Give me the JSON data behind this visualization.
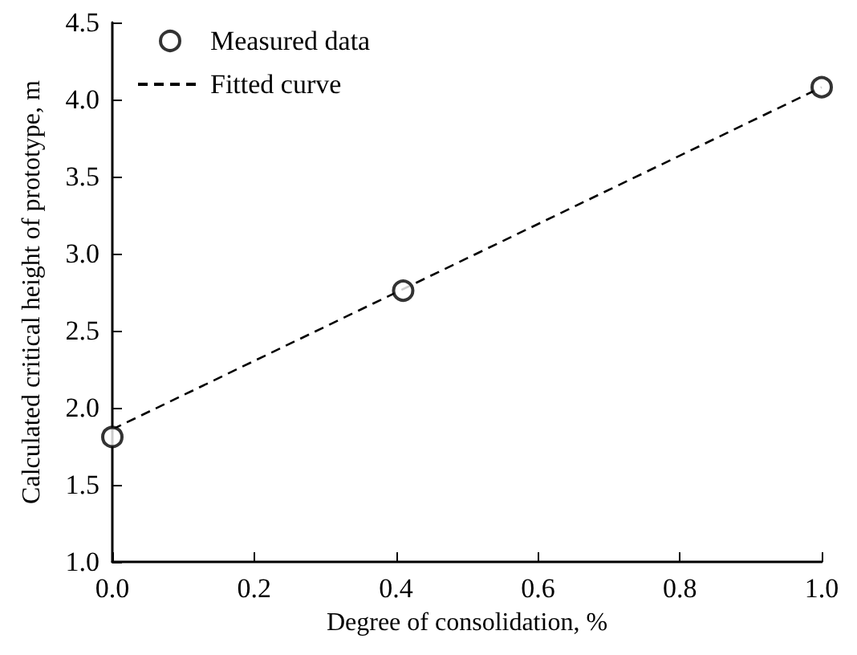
{
  "chart_data": {
    "type": "scatter",
    "xlabel": "Degree of consolidation, %",
    "ylabel": "Calculated critical height of prototype, m",
    "xlim": [
      0,
      1.0
    ],
    "xticks": [
      {
        "value": 0,
        "label": "0.0"
      },
      0.2,
      0.4,
      0.6,
      0.8,
      {
        "value": 1,
        "label": "1.0"
      }
    ],
    "ylim": [
      1.0,
      4.5
    ],
    "yticks": [
      {
        "value": 1,
        "label": "1.0"
      },
      1.5,
      {
        "value": 2,
        "label": "2.0"
      },
      2.5,
      {
        "value": 3,
        "label": "3.0"
      },
      3.5,
      {
        "value": 4,
        "label": "4.0"
      },
      4.5
    ],
    "series": [
      {
        "name": "Measured data",
        "color": "#000000",
        "marker": "circle",
        "x": [
          0,
          0.41,
          1.0
        ],
        "values": [
          1.81,
          2.76,
          4.08
        ]
      },
      {
        "name": "Fitted curve",
        "type": "line",
        "color": "#000000",
        "line_style": "dashed",
        "marker": "none",
        "x": [
          0,
          1.0
        ],
        "values": [
          1.86,
          4.08
        ]
      }
    ],
    "legend": "top left",
    "grid": false
  }
}
